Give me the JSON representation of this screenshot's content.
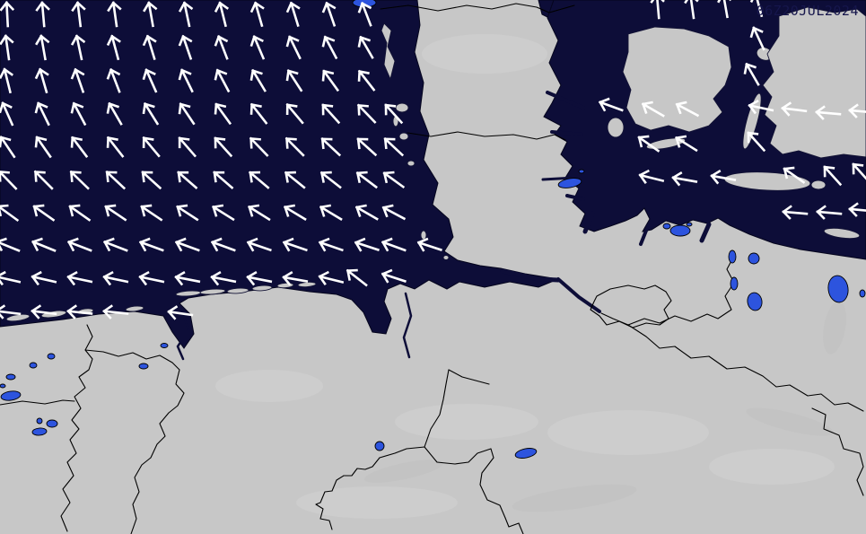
{
  "map": {
    "timestamp": "06Z20JUL2024"
  },
  "colors": {
    "sea": "#0d0d38",
    "land": "#c7c7c7",
    "lake": "#2d54de",
    "arrow": "#ffffff",
    "border": "#000000",
    "ts": "#16164c"
  },
  "wind_field": {
    "symbol": "wind-direction-arrow",
    "arrows": [
      [
        8,
        15,
        -3
      ],
      [
        48,
        15,
        -5
      ],
      [
        88,
        15,
        -7
      ],
      [
        128,
        15,
        -8
      ],
      [
        168,
        15,
        -10
      ],
      [
        208,
        15,
        -12
      ],
      [
        248,
        15,
        -14
      ],
      [
        288,
        15,
        -16
      ],
      [
        328,
        15,
        -17
      ],
      [
        368,
        15,
        -19
      ],
      [
        408,
        15,
        -21
      ],
      [
        8,
        52,
        -8
      ],
      [
        48,
        52,
        -10
      ],
      [
        88,
        52,
        -12
      ],
      [
        128,
        52,
        -15
      ],
      [
        168,
        52,
        -17
      ],
      [
        208,
        52,
        -19
      ],
      [
        248,
        52,
        -21
      ],
      [
        288,
        52,
        -23
      ],
      [
        328,
        52,
        -26
      ],
      [
        368,
        52,
        -28
      ],
      [
        408,
        52,
        -30
      ],
      [
        8,
        89,
        -14
      ],
      [
        48,
        89,
        -16
      ],
      [
        88,
        89,
        -19
      ],
      [
        128,
        89,
        -21
      ],
      [
        168,
        89,
        -24
      ],
      [
        208,
        89,
        -26
      ],
      [
        248,
        89,
        -28
      ],
      [
        288,
        89,
        -31
      ],
      [
        328,
        89,
        -33
      ],
      [
        368,
        89,
        -36
      ],
      [
        408,
        89,
        -38
      ],
      [
        8,
        126,
        -24
      ],
      [
        48,
        126,
        -26
      ],
      [
        88,
        126,
        -28
      ],
      [
        128,
        126,
        -30
      ],
      [
        168,
        126,
        -32
      ],
      [
        208,
        126,
        -34
      ],
      [
        248,
        126,
        -36
      ],
      [
        288,
        126,
        -38
      ],
      [
        328,
        126,
        -40
      ],
      [
        368,
        126,
        -42
      ],
      [
        408,
        126,
        -44
      ],
      [
        438,
        126,
        -42
      ],
      [
        8,
        163,
        -34
      ],
      [
        48,
        163,
        -35
      ],
      [
        88,
        163,
        -37
      ],
      [
        128,
        163,
        -38
      ],
      [
        168,
        163,
        -40
      ],
      [
        208,
        163,
        -41
      ],
      [
        248,
        163,
        -42
      ],
      [
        288,
        163,
        -44
      ],
      [
        328,
        163,
        -45
      ],
      [
        368,
        163,
        -47
      ],
      [
        408,
        163,
        -48
      ],
      [
        438,
        163,
        -47
      ],
      [
        8,
        200,
        -44
      ],
      [
        48,
        200,
        -45
      ],
      [
        88,
        200,
        -46
      ],
      [
        128,
        200,
        -47
      ],
      [
        168,
        200,
        -48
      ],
      [
        208,
        200,
        -49
      ],
      [
        248,
        200,
        -49
      ],
      [
        288,
        200,
        -50
      ],
      [
        328,
        200,
        -51
      ],
      [
        368,
        200,
        -52
      ],
      [
        408,
        200,
        -53
      ],
      [
        438,
        200,
        -54
      ],
      [
        8,
        237,
        -54
      ],
      [
        48,
        237,
        -55
      ],
      [
        88,
        237,
        -55
      ],
      [
        128,
        237,
        -56
      ],
      [
        168,
        237,
        -56
      ],
      [
        208,
        237,
        -57
      ],
      [
        248,
        237,
        -58
      ],
      [
        288,
        237,
        -58
      ],
      [
        328,
        237,
        -59
      ],
      [
        368,
        237,
        -59
      ],
      [
        408,
        237,
        -60
      ],
      [
        438,
        237,
        -62
      ],
      [
        8,
        274,
        -68
      ],
      [
        48,
        274,
        -68
      ],
      [
        88,
        274,
        -69
      ],
      [
        128,
        274,
        -69
      ],
      [
        168,
        274,
        -70
      ],
      [
        208,
        274,
        -70
      ],
      [
        248,
        274,
        -70
      ],
      [
        288,
        274,
        -71
      ],
      [
        328,
        274,
        -71
      ],
      [
        368,
        274,
        -71
      ],
      [
        408,
        274,
        -72
      ],
      [
        438,
        274,
        -70
      ],
      [
        478,
        274,
        -72
      ],
      [
        8,
        311,
        -77
      ],
      [
        48,
        311,
        -77
      ],
      [
        88,
        311,
        -78
      ],
      [
        128,
        311,
        -78
      ],
      [
        168,
        311,
        -78
      ],
      [
        208,
        311,
        -79
      ],
      [
        248,
        311,
        -79
      ],
      [
        288,
        311,
        -79
      ],
      [
        328,
        311,
        -80
      ],
      [
        368,
        311,
        -76
      ],
      [
        397,
        309,
        -52
      ],
      [
        438,
        309,
        -72
      ],
      [
        8,
        348,
        -83
      ],
      [
        48,
        348,
        -83
      ],
      [
        88,
        348,
        -84
      ],
      [
        128,
        348,
        -84
      ],
      [
        200,
        349,
        -82
      ],
      [
        733,
        6,
        -5
      ],
      [
        771,
        6,
        -8
      ],
      [
        808,
        5,
        -10
      ],
      [
        845,
        4,
        -15
      ],
      [
        845,
        42,
        -25
      ],
      [
        838,
        82,
        -30
      ],
      [
        680,
        118,
        -70
      ],
      [
        727,
        122,
        -60
      ],
      [
        765,
        122,
        -62
      ],
      [
        847,
        120,
        -78
      ],
      [
        884,
        122,
        -83
      ],
      [
        922,
        126,
        -85
      ],
      [
        959,
        124,
        -85
      ],
      [
        722,
        160,
        -55
      ],
      [
        764,
        160,
        -58
      ],
      [
        842,
        157,
        -42
      ],
      [
        725,
        198,
        -76
      ],
      [
        762,
        200,
        -80
      ],
      [
        805,
        198,
        -80
      ],
      [
        884,
        195,
        -55
      ],
      [
        927,
        195,
        -42
      ],
      [
        959,
        192,
        -42
      ],
      [
        885,
        237,
        -85
      ],
      [
        923,
        237,
        -85
      ],
      [
        959,
        234,
        -85
      ]
    ]
  }
}
